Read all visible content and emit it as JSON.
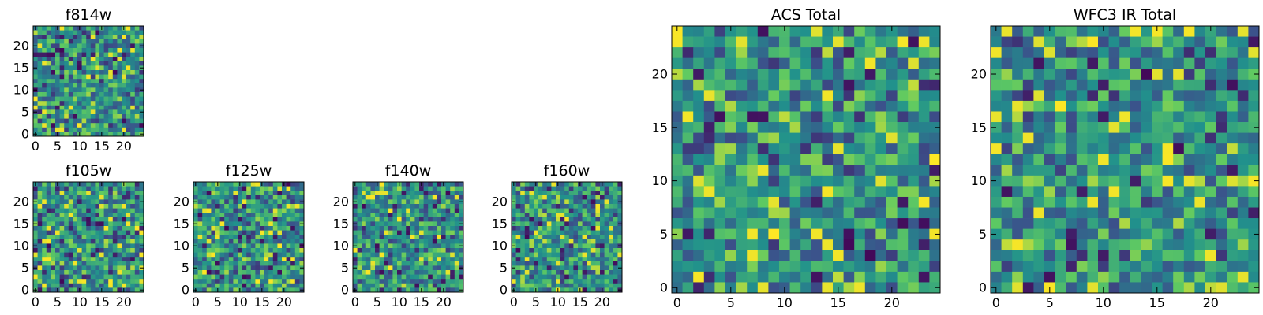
{
  "chart_data": [
    {
      "type": "heatmap",
      "title": "f814w",
      "grid_size": 25,
      "xticks": [
        "0",
        "5",
        "10",
        "15",
        "20"
      ],
      "yticks": [
        "0",
        "5",
        "10",
        "15",
        "20"
      ],
      "colormap": "viridis",
      "seed": 814
    },
    {
      "type": "heatmap",
      "title": "f105w",
      "grid_size": 25,
      "xticks": [
        "0",
        "5",
        "10",
        "15",
        "20"
      ],
      "yticks": [
        "0",
        "5",
        "10",
        "15",
        "20"
      ],
      "colormap": "viridis",
      "seed": 105
    },
    {
      "type": "heatmap",
      "title": "f125w",
      "grid_size": 25,
      "xticks": [
        "0",
        "5",
        "10",
        "15",
        "20"
      ],
      "yticks": [
        "0",
        "5",
        "10",
        "15",
        "20"
      ],
      "colormap": "viridis",
      "seed": 125
    },
    {
      "type": "heatmap",
      "title": "f140w",
      "grid_size": 25,
      "xticks": [
        "0",
        "5",
        "10",
        "15",
        "20"
      ],
      "yticks": [
        "0",
        "5",
        "10",
        "15",
        "20"
      ],
      "colormap": "viridis",
      "seed": 140
    },
    {
      "type": "heatmap",
      "title": "f160w",
      "grid_size": 25,
      "xticks": [
        "0",
        "5",
        "10",
        "15",
        "20"
      ],
      "yticks": [
        "0",
        "5",
        "10",
        "15",
        "20"
      ],
      "colormap": "viridis",
      "seed": 160
    },
    {
      "type": "heatmap",
      "title": "ACS Total",
      "grid_size": 25,
      "xticks": [
        "0",
        "5",
        "10",
        "15",
        "20"
      ],
      "yticks": [
        "0",
        "5",
        "10",
        "15",
        "20"
      ],
      "colormap": "viridis",
      "seed": 901
    },
    {
      "type": "heatmap",
      "title": "WFC3 IR Total",
      "grid_size": 25,
      "xticks": [
        "0",
        "5",
        "10",
        "15",
        "20"
      ],
      "yticks": [
        "0",
        "5",
        "10",
        "15",
        "20"
      ],
      "colormap": "viridis",
      "seed": 902
    }
  ],
  "colors": {
    "colormap_stops": [
      "#440154",
      "#3b528b",
      "#21918c",
      "#5ec962",
      "#fde725"
    ],
    "axes_edge": "#000000",
    "background": "#ffffff"
  }
}
